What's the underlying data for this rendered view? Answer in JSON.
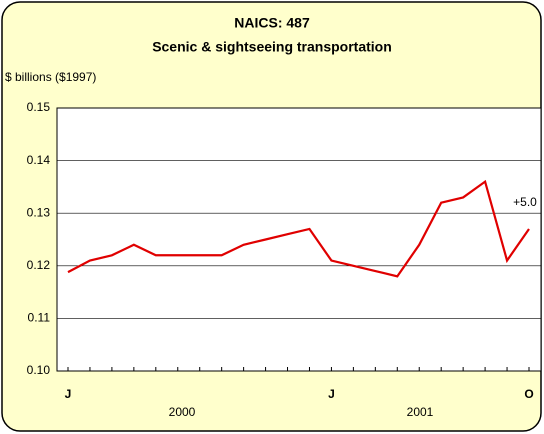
{
  "chart_data": {
    "type": "line",
    "title": "NAICS: 487",
    "subtitle": "Scenic & sightseeing transportation",
    "y_label": "$ billions ($1997)",
    "categories": [
      "J",
      null,
      null,
      null,
      null,
      null,
      null,
      null,
      null,
      null,
      null,
      null,
      "J",
      null,
      null,
      null,
      null,
      null,
      null,
      null,
      null,
      "O"
    ],
    "year_labels": [
      "2000",
      "2001"
    ],
    "series": [
      {
        "name": "Scenic & sightseeing transportation",
        "color": "#e00000",
        "values": [
          0.1188,
          0.121,
          0.122,
          0.124,
          0.122,
          0.122,
          0.122,
          0.122,
          0.124,
          0.125,
          0.126,
          0.127,
          0.121,
          0.12,
          0.119,
          0.118,
          0.124,
          0.132,
          0.133,
          0.136,
          0.121,
          0.127
        ]
      }
    ],
    "annotation": "+5.0",
    "ylim": [
      0.1,
      0.15
    ],
    "yticks": [
      {
        "value": 0.1,
        "label": "0.10"
      },
      0.11,
      0.12,
      0.13,
      0.14,
      0.15
    ],
    "grid": true
  }
}
